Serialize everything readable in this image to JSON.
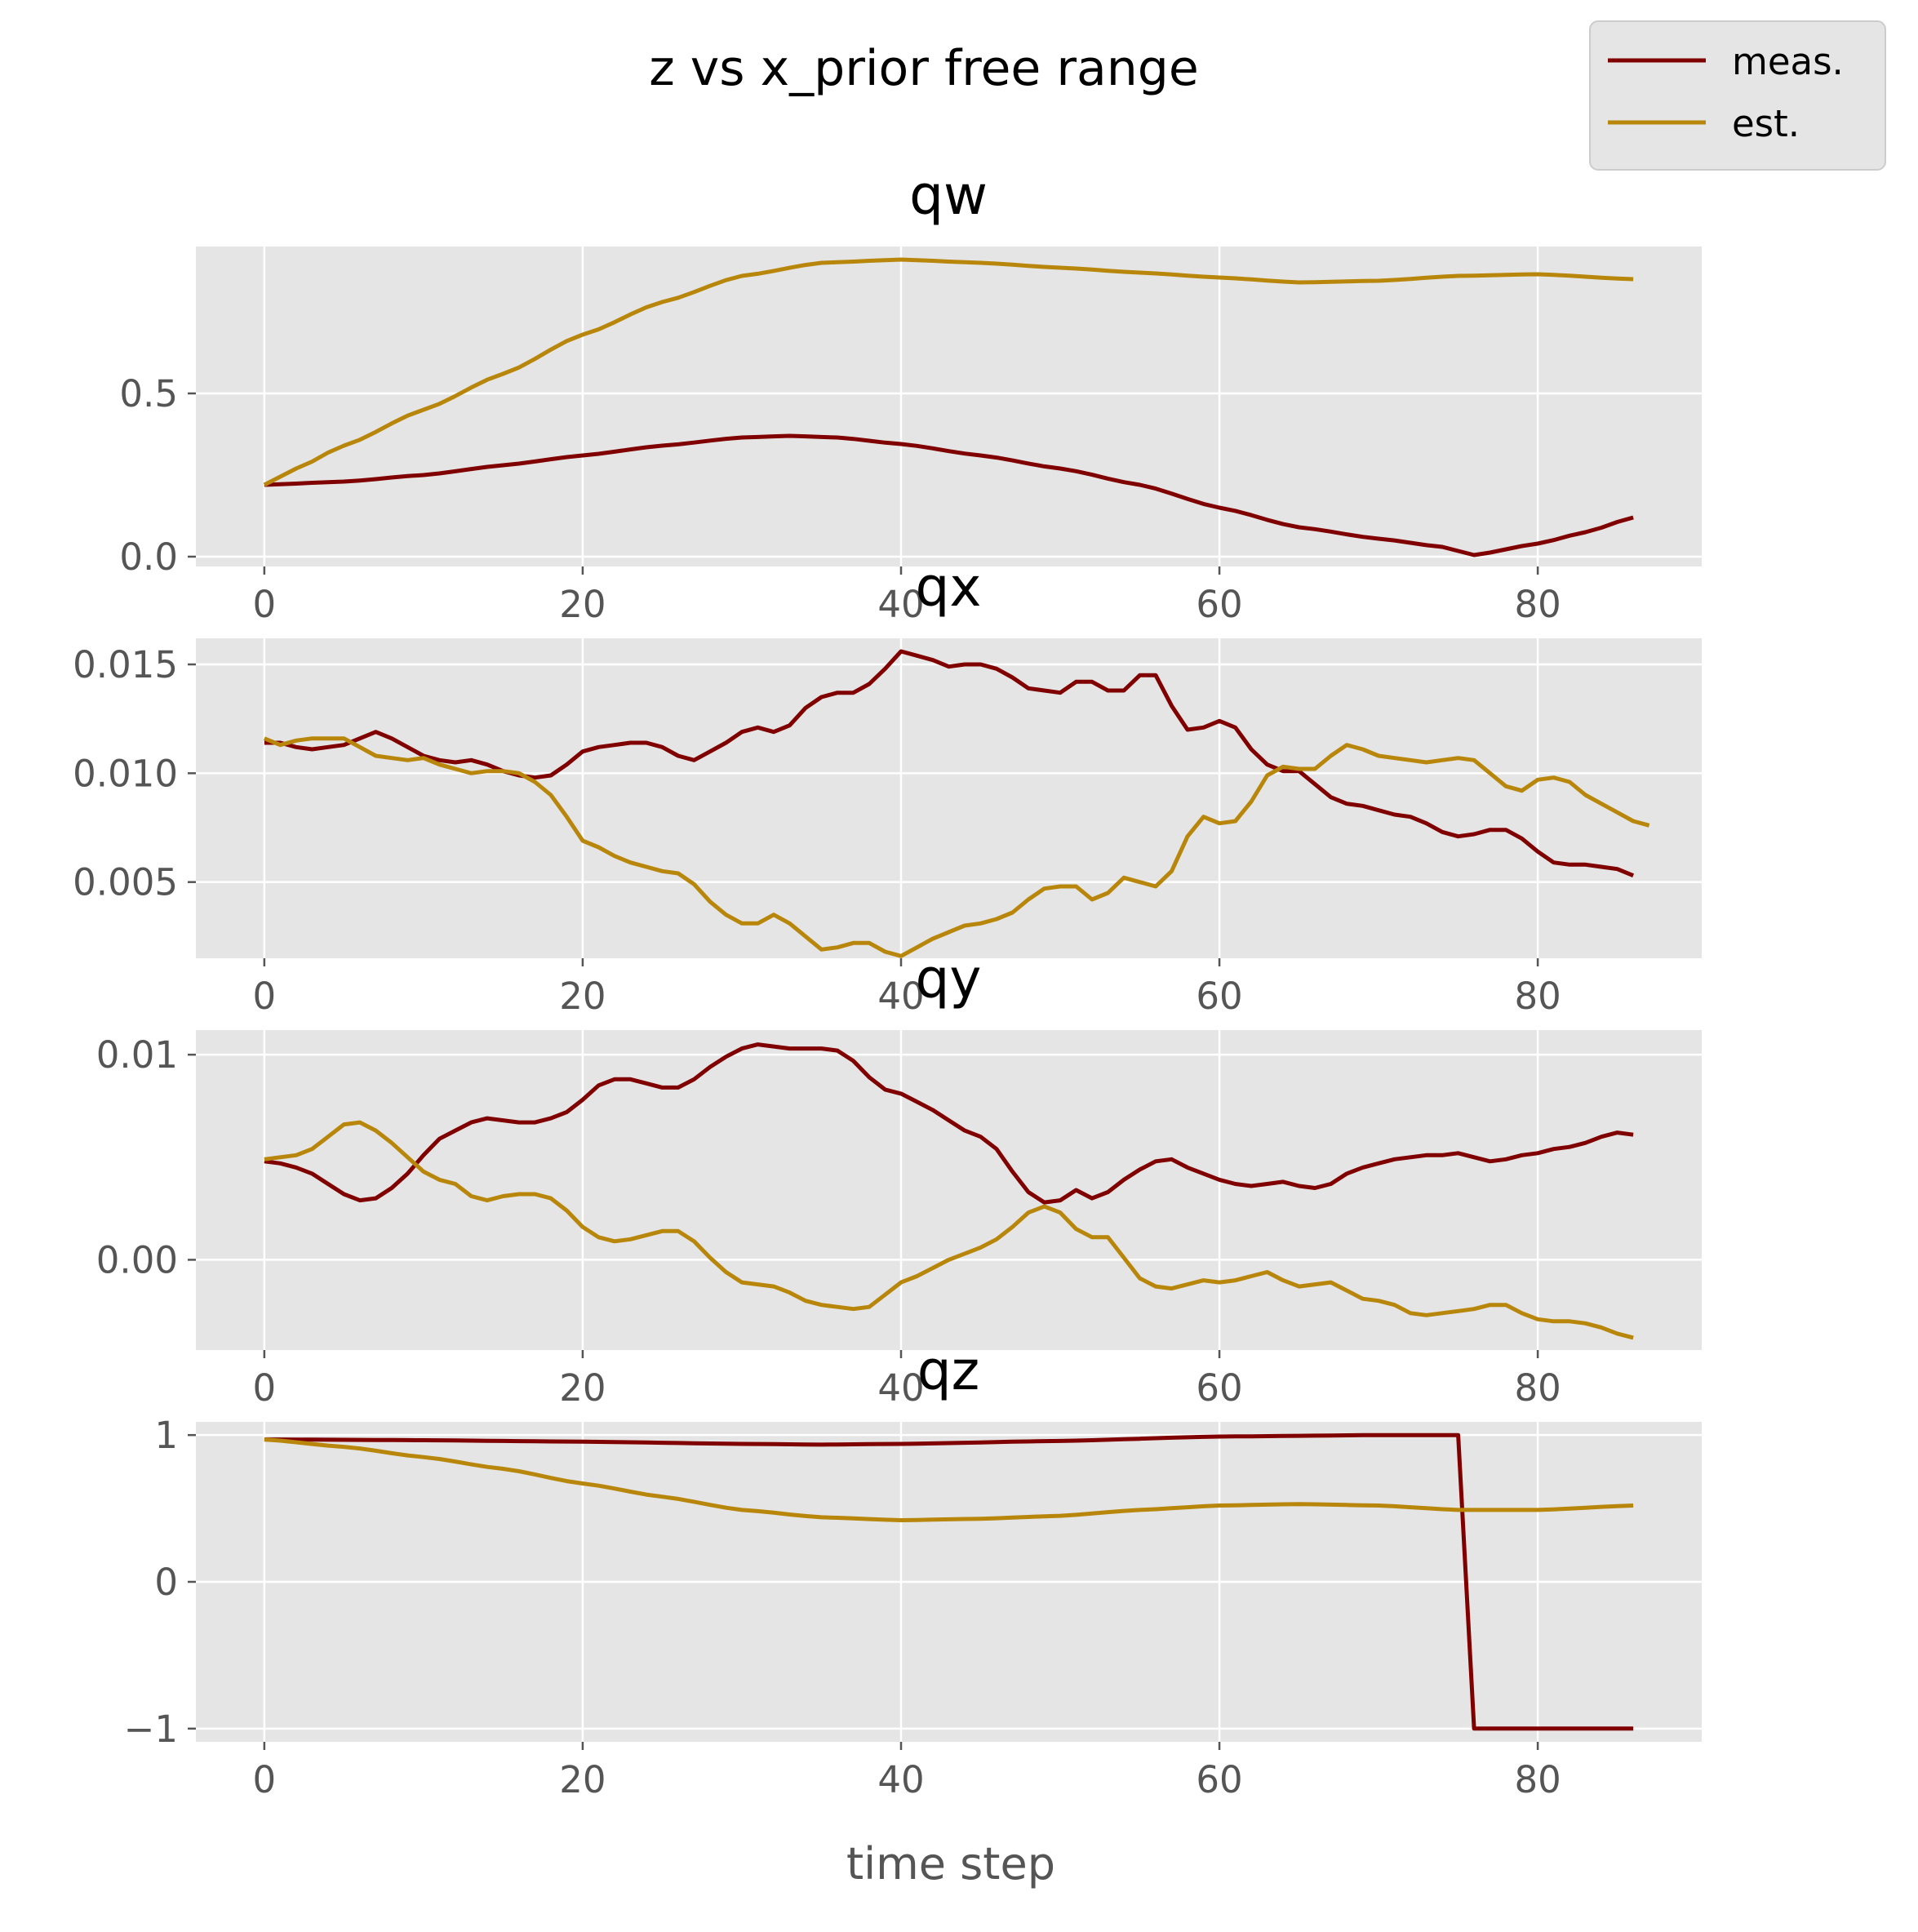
{
  "figure": {
    "suptitle": "z vs x_prior free range",
    "xlabel": "time step",
    "legend": {
      "placement": "top-right",
      "entries": [
        "meas.",
        "est."
      ]
    },
    "colors": {
      "meas": "#800000",
      "est": "#b8860b",
      "panel": "#e5e5e5",
      "grid": "#ffffff"
    }
  },
  "chart_data": [
    {
      "type": "line",
      "title": "qw",
      "xlim": [
        -4.3,
        90.3
      ],
      "ylim": [
        -0.03,
        0.95
      ],
      "xticks": [
        0,
        20,
        40,
        60,
        80
      ],
      "xtick_labels": [
        "0",
        "20",
        "40",
        "60",
        "80"
      ],
      "yticks": [
        0.0,
        0.5
      ],
      "ytick_labels": [
        "0.0",
        "0.5"
      ],
      "grid": true,
      "series": [
        {
          "name": "meas.",
          "color": "#800000",
          "x_start": 0,
          "x_step": 1,
          "points": [
            [
              0,
              0.22
            ],
            [
              5,
              0.23
            ],
            [
              10,
              0.25
            ],
            [
              15,
              0.28
            ],
            [
              20,
              0.31
            ],
            [
              25,
              0.34
            ],
            [
              30,
              0.365
            ],
            [
              33,
              0.37
            ],
            [
              36,
              0.365
            ],
            [
              40,
              0.345
            ],
            [
              45,
              0.31
            ],
            [
              50,
              0.27
            ],
            [
              55,
              0.22
            ],
            [
              60,
              0.15
            ],
            [
              65,
              0.09
            ],
            [
              70,
              0.055
            ],
            [
              74,
              0.03
            ],
            [
              76,
              0.005
            ],
            [
              80,
              0.04
            ],
            [
              83,
              0.075
            ],
            [
              86,
              0.12
            ]
          ]
        },
        {
          "name": "est.",
          "color": "#b8860b",
          "x_start": 0,
          "x_step": 1,
          "points": [
            [
              0,
              0.22
            ],
            [
              2,
              0.27
            ],
            [
              5,
              0.34
            ],
            [
              10,
              0.45
            ],
            [
              15,
              0.56
            ],
            [
              20,
              0.68
            ],
            [
              25,
              0.78
            ],
            [
              30,
              0.86
            ],
            [
              35,
              0.9
            ],
            [
              40,
              0.91
            ],
            [
              45,
              0.9
            ],
            [
              50,
              0.885
            ],
            [
              55,
              0.87
            ],
            [
              60,
              0.855
            ],
            [
              65,
              0.84
            ],
            [
              70,
              0.845
            ],
            [
              75,
              0.86
            ],
            [
              80,
              0.865
            ],
            [
              86,
              0.85
            ]
          ]
        }
      ]
    },
    {
      "type": "line",
      "title": "qx",
      "xlim": [
        -4.3,
        90.3
      ],
      "ylim": [
        0.0015,
        0.0162
      ],
      "xticks": [
        0,
        20,
        40,
        60,
        80
      ],
      "xtick_labels": [
        "0",
        "20",
        "40",
        "60",
        "80"
      ],
      "yticks": [
        0.005,
        0.01,
        0.015
      ],
      "ytick_labels": [
        "0.005",
        "0.010",
        "0.015"
      ],
      "grid": true,
      "series": [
        {
          "name": "meas.",
          "color": "#800000",
          "x_start": 0,
          "x_step": 1,
          "values": [
            0.0114,
            0.0114,
            0.0112,
            0.0111,
            0.0112,
            0.0113,
            0.0116,
            0.0119,
            0.0116,
            0.0112,
            0.0108,
            0.0106,
            0.0105,
            0.0106,
            0.0104,
            0.0101,
            0.0099,
            0.0098,
            0.0099,
            0.0104,
            0.011,
            0.0112,
            0.0113,
            0.0114,
            0.0114,
            0.0112,
            0.0108,
            0.0106,
            0.011,
            0.0114,
            0.0119,
            0.0121,
            0.0119,
            0.0122,
            0.013,
            0.0135,
            0.0137,
            0.0137,
            0.0141,
            0.0148,
            0.0156,
            0.0154,
            0.0152,
            0.0149,
            0.015,
            0.015,
            0.0148,
            0.0144,
            0.0139,
            0.0138,
            0.0137,
            0.0142,
            0.0142,
            0.0138,
            0.0138,
            0.0145,
            0.0145,
            0.0131,
            0.012,
            0.0121,
            0.0124,
            0.0121,
            0.0111,
            0.0104,
            0.0101,
            0.0101,
            0.0095,
            0.0089,
            0.0086,
            0.0085,
            0.0083,
            0.0081,
            0.008,
            0.0077,
            0.0073,
            0.0071,
            0.0072,
            0.0074,
            0.0074,
            0.007,
            0.0064,
            0.0059,
            0.0058,
            0.0058,
            0.0057,
            0.0056,
            0.0053
          ]
        },
        {
          "name": "est.",
          "color": "#b8860b",
          "x_start": 0,
          "x_step": 1,
          "values": [
            0.0116,
            0.0113,
            0.0115,
            0.0116,
            0.0116,
            0.0116,
            0.0112,
            0.0108,
            0.0107,
            0.0106,
            0.0107,
            0.0104,
            0.0102,
            0.01,
            0.0101,
            0.0101,
            0.01,
            0.0096,
            0.009,
            0.008,
            0.0069,
            0.0066,
            0.0062,
            0.0059,
            0.0057,
            0.0055,
            0.0054,
            0.0049,
            0.0041,
            0.0035,
            0.0031,
            0.0031,
            0.0035,
            0.0031,
            0.0025,
            0.0019,
            0.002,
            0.0022,
            0.0022,
            0.0018,
            0.0016,
            0.002,
            0.0024,
            0.0027,
            0.003,
            0.0031,
            0.0033,
            0.0036,
            0.0042,
            0.0047,
            0.0048,
            0.0048,
            0.0042,
            0.0045,
            0.0052,
            0.005,
            0.0048,
            0.0055,
            0.0071,
            0.008,
            0.0077,
            0.0078,
            0.0087,
            0.0099,
            0.0103,
            0.0102,
            0.0102,
            0.0108,
            0.0113,
            0.0111,
            0.0108,
            0.0107,
            0.0106,
            0.0105,
            0.0106,
            0.0107,
            0.0106,
            0.01,
            0.0094,
            0.0092,
            0.0097,
            0.0098,
            0.0096,
            0.009,
            0.0086,
            0.0082,
            0.0078,
            0.0076
          ]
        }
      ]
    },
    {
      "type": "line",
      "title": "qy",
      "xlim": [
        -4.3,
        90.3
      ],
      "ylim": [
        -0.0044,
        0.0112
      ],
      "xticks": [
        0,
        20,
        40,
        60,
        80
      ],
      "xtick_labels": [
        "0",
        "20",
        "40",
        "60",
        "80"
      ],
      "yticks": [
        0.0,
        0.01
      ],
      "ytick_labels": [
        "0.00",
        "0.01"
      ],
      "grid": true,
      "series": [
        {
          "name": "meas.",
          "color": "#800000",
          "x_start": 0,
          "x_step": 1,
          "values": [
            0.0048,
            0.0047,
            0.0045,
            0.0042,
            0.0037,
            0.0032,
            0.0029,
            0.003,
            0.0035,
            0.0042,
            0.0051,
            0.0059,
            0.0063,
            0.0067,
            0.0069,
            0.0068,
            0.0067,
            0.0067,
            0.0069,
            0.0072,
            0.0078,
            0.0085,
            0.0088,
            0.0088,
            0.0086,
            0.0084,
            0.0084,
            0.0088,
            0.0094,
            0.0099,
            0.0103,
            0.0105,
            0.0104,
            0.0103,
            0.0103,
            0.0103,
            0.0102,
            0.0097,
            0.0089,
            0.0083,
            0.0081,
            0.0077,
            0.0073,
            0.0068,
            0.0063,
            0.006,
            0.0054,
            0.0043,
            0.0033,
            0.0028,
            0.0029,
            0.0034,
            0.003,
            0.0033,
            0.0039,
            0.0044,
            0.0048,
            0.0049,
            0.0045,
            0.0042,
            0.0039,
            0.0037,
            0.0036,
            0.0037,
            0.0038,
            0.0036,
            0.0035,
            0.0037,
            0.0042,
            0.0045,
            0.0047,
            0.0049,
            0.005,
            0.0051,
            0.0051,
            0.0052,
            0.005,
            0.0048,
            0.0049,
            0.0051,
            0.0052,
            0.0054,
            0.0055,
            0.0057,
            0.006,
            0.0062,
            0.0061
          ]
        },
        {
          "name": "est.",
          "color": "#b8860b",
          "x_start": 0,
          "x_step": 1,
          "values": [
            0.0049,
            0.005,
            0.0051,
            0.0054,
            0.006,
            0.0066,
            0.0067,
            0.0063,
            0.0057,
            0.005,
            0.0043,
            0.0039,
            0.0037,
            0.0031,
            0.0029,
            0.0031,
            0.0032,
            0.0032,
            0.003,
            0.0024,
            0.0016,
            0.0011,
            0.0009,
            0.001,
            0.0012,
            0.0014,
            0.0014,
            0.0009,
            0.0001,
            -0.0006,
            -0.0011,
            -0.0012,
            -0.0013,
            -0.0016,
            -0.002,
            -0.0022,
            -0.0023,
            -0.0024,
            -0.0023,
            -0.0017,
            -0.0011,
            -0.0008,
            -0.0004,
            0.0,
            0.0003,
            0.0006,
            0.001,
            0.0016,
            0.0023,
            0.0026,
            0.0023,
            0.0015,
            0.0011,
            0.0011,
            0.0001,
            -0.0009,
            -0.0013,
            -0.0014,
            -0.0012,
            -0.001,
            -0.0011,
            -0.001,
            -0.0008,
            -0.0006,
            -0.001,
            -0.0013,
            -0.0012,
            -0.0011,
            -0.0015,
            -0.0019,
            -0.002,
            -0.0022,
            -0.0026,
            -0.0027,
            -0.0026,
            -0.0025,
            -0.0024,
            -0.0022,
            -0.0022,
            -0.0026,
            -0.0029,
            -0.003,
            -0.003,
            -0.0031,
            -0.0033,
            -0.0036,
            -0.0038
          ]
        }
      ]
    },
    {
      "type": "line",
      "title": "qz",
      "xlim": [
        -4.3,
        90.3
      ],
      "ylim": [
        -1.09,
        1.09
      ],
      "xticks": [
        0,
        20,
        40,
        60,
        80
      ],
      "xtick_labels": [
        "0",
        "20",
        "40",
        "60",
        "80"
      ],
      "yticks": [
        -1,
        0,
        1
      ],
      "ytick_labels": [
        "−1",
        "0",
        "1"
      ],
      "grid": true,
      "series": [
        {
          "name": "meas.",
          "color": "#800000",
          "x_start": 0,
          "x_step": 1,
          "points": [
            [
              0,
              0.97
            ],
            [
              10,
              0.965
            ],
            [
              20,
              0.955
            ],
            [
              30,
              0.94
            ],
            [
              35,
              0.935
            ],
            [
              40,
              0.94
            ],
            [
              50,
              0.96
            ],
            [
              60,
              0.99
            ],
            [
              70,
              1.0
            ],
            [
              75,
              1.0
            ],
            [
              76,
              -1.0
            ],
            [
              80,
              -1.0
            ],
            [
              86,
              -1.0
            ]
          ]
        },
        {
          "name": "est.",
          "color": "#b8860b",
          "x_start": 0,
          "x_step": 1,
          "points": [
            [
              0,
              0.97
            ],
            [
              5,
              0.92
            ],
            [
              10,
              0.85
            ],
            [
              15,
              0.77
            ],
            [
              20,
              0.67
            ],
            [
              25,
              0.58
            ],
            [
              30,
              0.49
            ],
            [
              35,
              0.44
            ],
            [
              40,
              0.42
            ],
            [
              45,
              0.43
            ],
            [
              50,
              0.45
            ],
            [
              55,
              0.49
            ],
            [
              60,
              0.52
            ],
            [
              65,
              0.53
            ],
            [
              70,
              0.52
            ],
            [
              75,
              0.49
            ],
            [
              80,
              0.49
            ],
            [
              86,
              0.52
            ]
          ]
        }
      ]
    }
  ]
}
